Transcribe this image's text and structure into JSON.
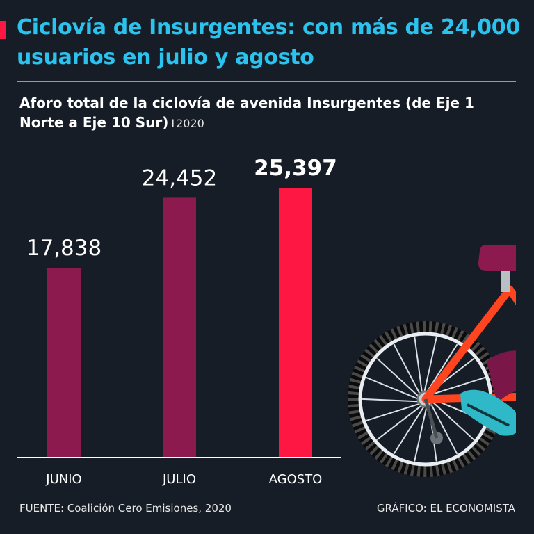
{
  "header": {
    "title": "Ciclovía de Insurgentes: con más de 24,000 usuarios en julio y agosto",
    "subtitle": "Aforo total de la ciclovía de avenida Insurgentes (de Eje 1 Norte a Eje 10 Sur)",
    "separator": "I",
    "year": "2020"
  },
  "chart_data": {
    "type": "bar",
    "title": "Aforo total de la ciclovía de avenida Insurgentes (de Eje 1 Norte a Eje 10 Sur) 2020",
    "categories": [
      "JUNIO",
      "JULIO",
      "AGOSTO"
    ],
    "values": [
      17838,
      24452,
      25397
    ],
    "value_labels": [
      "17,838",
      "24,452",
      "25,397"
    ],
    "highlight_index": 2,
    "xlabel": "",
    "ylabel": "",
    "ylim": [
      0,
      25397
    ],
    "grid": false,
    "colors": {
      "bar": "#8c1a4e",
      "highlight": "#ff1744",
      "axis": "#ffffff",
      "label": "#ffffff"
    }
  },
  "footer": {
    "source": "FUENTE: Coalición Cero Emisiones, 2020",
    "credit": "GRÁFICO: EL ECONOMISTA"
  },
  "colors": {
    "background": "#161d26",
    "title": "#2bc3ee",
    "accent": "#ff1744",
    "bike_frame": "#ff4420",
    "bike_seat": "#8c1a4e",
    "shoe": "#2fb8c8"
  },
  "illustration": {
    "icon": "bicycle-illustration-icon"
  }
}
